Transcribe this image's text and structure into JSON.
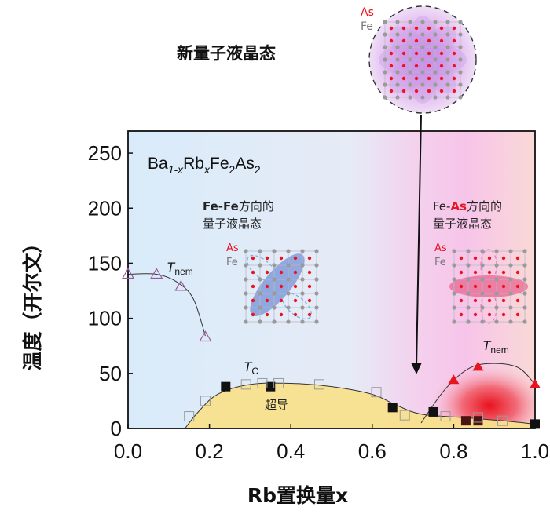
{
  "chart_data": {
    "type": "scatter",
    "xlabel": "Rb置换量x",
    "ylabel": "温度（开尔文）",
    "xlim": [
      0,
      1.0
    ],
    "ylim": [
      0,
      270
    ],
    "xticks": [
      "0.0",
      "0.2",
      "0.4",
      "0.6",
      "0.8",
      "1.0"
    ],
    "yticks": [
      "0",
      "50",
      "100",
      "150",
      "200",
      "250"
    ],
    "compound": {
      "a": "Ba",
      "b": "1-x",
      "c": "Rb",
      "d": "x",
      "e": "Fe",
      "f": "2",
      "g": "As",
      "h": "2"
    },
    "title_top": "新量子液晶态",
    "region_left": {
      "line1_bold": "Fe-Fe",
      "line1_rest": "方向的",
      "line2": "量子液晶态"
    },
    "region_right": {
      "line1_a": "Fe-",
      "line1_b": "As",
      "line1_rest": "方向的",
      "line2": "量子液晶态"
    },
    "legend_as": "As",
    "legend_fe": "Fe",
    "label_tnem": {
      "main": "T",
      "sub": "nem"
    },
    "label_tc": {
      "main": "T",
      "sub": "C"
    },
    "label_sc": "超导",
    "series": [
      {
        "marker": "open-triangle",
        "values": [
          [
            0.0,
            140
          ],
          [
            0.07,
            140
          ],
          [
            0.13,
            129
          ],
          [
            0.19,
            83
          ]
        ]
      },
      {
        "marker": "filled-square",
        "values": [
          [
            0.24,
            38
          ],
          [
            0.35,
            38
          ],
          [
            0.65,
            19
          ],
          [
            0.75,
            15
          ],
          [
            0.83,
            7
          ],
          [
            0.86,
            7
          ],
          [
            1.0,
            4
          ]
        ]
      },
      {
        "marker": "open-square",
        "values": [
          [
            0.15,
            11
          ],
          [
            0.19,
            25
          ],
          [
            0.29,
            40
          ],
          [
            0.33,
            41
          ],
          [
            0.37,
            41
          ],
          [
            0.47,
            40
          ],
          [
            0.61,
            33
          ],
          [
            0.68,
            12
          ],
          [
            0.78,
            11
          ],
          [
            0.86,
            10
          ],
          [
            0.92,
            7
          ]
        ]
      },
      {
        "marker": "filled-triangle",
        "values": [
          [
            0.8,
            44
          ],
          [
            0.86,
            56
          ],
          [
            1.0,
            40
          ]
        ]
      }
    ],
    "curves": {
      "tnem_left": [
        [
          0.0,
          140
        ],
        [
          0.07,
          140
        ],
        [
          0.12,
          133
        ],
        [
          0.16,
          118
        ],
        [
          0.19,
          84
        ]
      ],
      "tc_dome": [
        [
          0.14,
          0
        ],
        [
          0.17,
          14
        ],
        [
          0.22,
          31
        ],
        [
          0.3,
          40
        ],
        [
          0.4,
          41
        ],
        [
          0.5,
          38
        ],
        [
          0.6,
          31
        ],
        [
          0.66,
          21
        ],
        [
          0.72,
          13
        ],
        [
          0.82,
          10
        ],
        [
          0.92,
          7
        ],
        [
          1.0,
          4
        ]
      ],
      "tnem_right": [
        [
          0.72,
          5
        ],
        [
          0.78,
          36
        ],
        [
          0.84,
          55
        ],
        [
          0.9,
          59
        ],
        [
          0.96,
          55
        ],
        [
          1.0,
          40
        ]
      ]
    },
    "colors": {
      "left_bg": "#d8eaf8",
      "right_bg": "#f7c7ea",
      "sc_fill": "#f8e08c",
      "red": "#e8141e",
      "grey_atom": "#9a9a9a"
    }
  }
}
